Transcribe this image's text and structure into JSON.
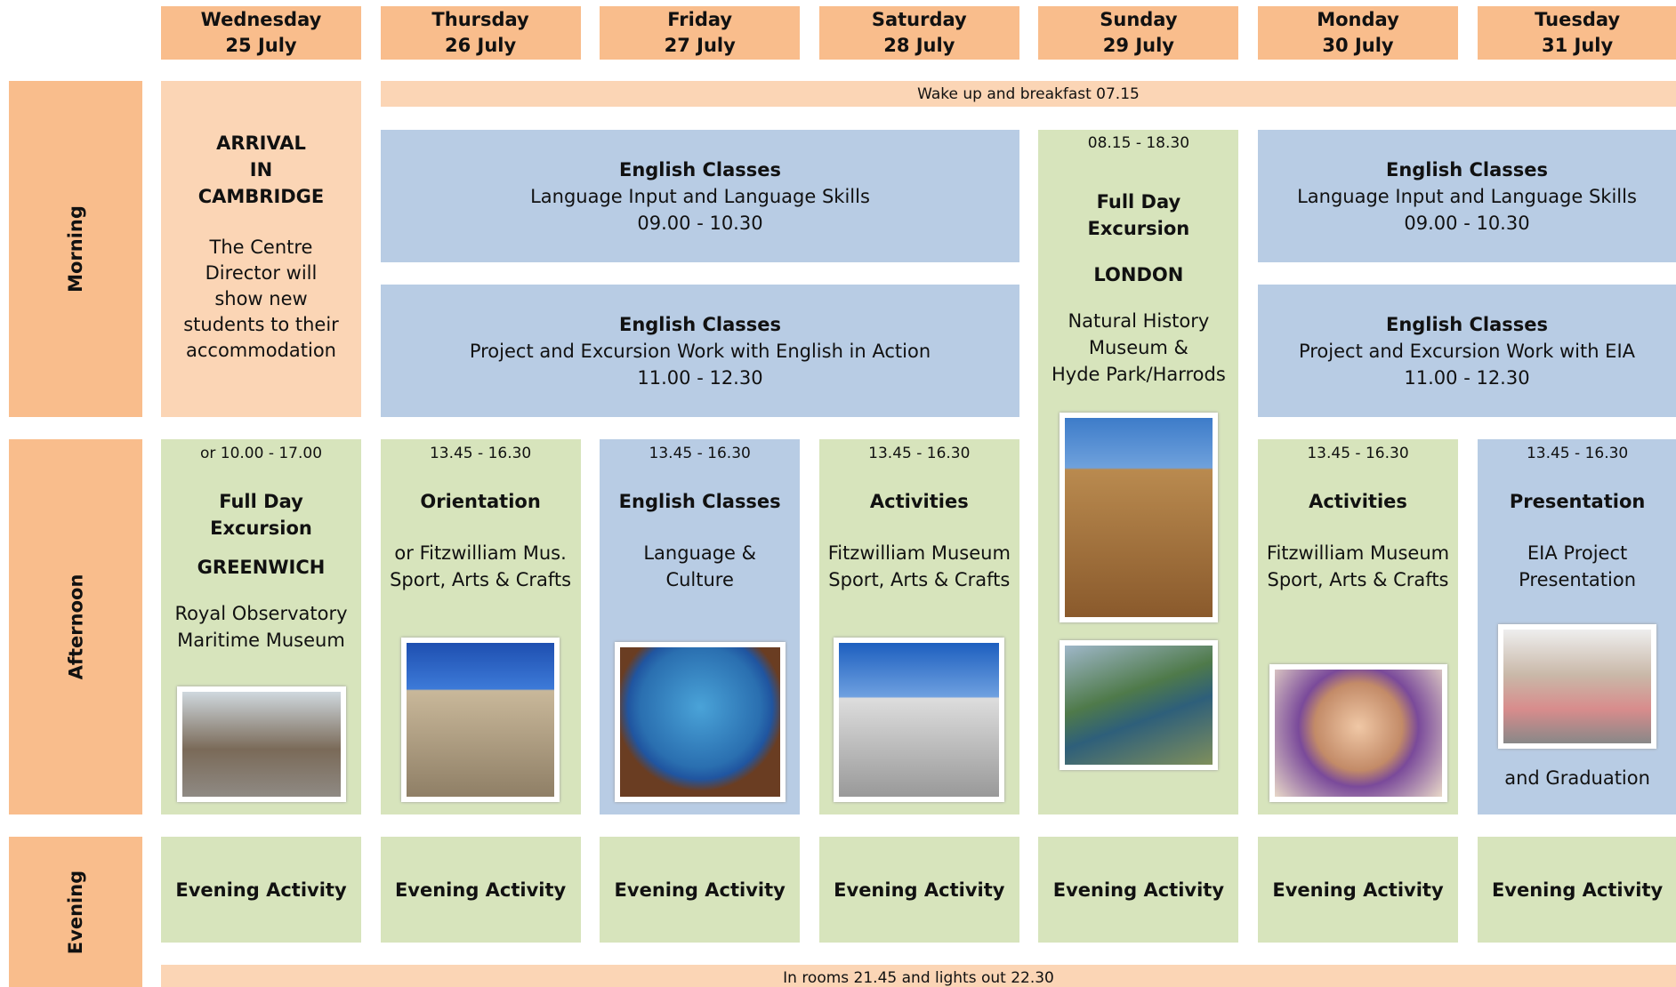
{
  "header": {
    "days": [
      {
        "day": "Wednesday",
        "date": "25 July"
      },
      {
        "day": "Thursday",
        "date": "26 July"
      },
      {
        "day": "Friday",
        "date": "27 July"
      },
      {
        "day": "Saturday",
        "date": "28 July"
      },
      {
        "day": "Sunday",
        "date": "29 July"
      },
      {
        "day": "Monday",
        "date": "30 July"
      },
      {
        "day": "Tuesday",
        "date": "31 July"
      }
    ]
  },
  "rows": [
    "Morning",
    "Afternoon",
    "Evening"
  ],
  "wake": "Wake up and breakfast 07.15",
  "lights": "In rooms 21.45 and lights out 22.30",
  "arrival": {
    "title": [
      "ARRIVAL",
      "IN",
      "CAMBRIDGE"
    ],
    "text": [
      "The Centre",
      "Director will",
      "show new",
      "students to their",
      "accommodation"
    ]
  },
  "morning": [
    {
      "title": "English Classes",
      "subtitle": "Language Input and Language Skills",
      "time": "09.00 - 10.30"
    },
    {
      "title": "English Classes",
      "subtitle": "Project and Excursion Work with English in Action",
      "time": "11.00 - 12.30"
    },
    {
      "title": "English Classes",
      "subtitle": "Language Input and Language Skills",
      "time": "09.00 - 10.30"
    },
    {
      "title": "English Classes",
      "subtitle": "Project and Excursion Work with EIA",
      "time": "11.00 - 12.30"
    }
  ],
  "sunday": {
    "time": "08.15 - 18.30",
    "title": [
      "Full Day",
      "Excursion"
    ],
    "place": "LONDON",
    "text": [
      "Natural History",
      "Museum &",
      "Hyde Park/Harrods"
    ]
  },
  "afternoon": [
    {
      "time": "or 10.00 - 17.00",
      "title": [
        "Full Day",
        "Excursion"
      ],
      "place": "GREENWICH",
      "text": [
        "Royal Observatory",
        "Maritime Museum"
      ]
    },
    {
      "time": "13.45 - 16.30",
      "title": [
        "Orientation"
      ],
      "text": [
        "or Fitzwilliam Mus.",
        "Sport, Arts & Crafts"
      ]
    },
    {
      "time": "13.45 - 16.30",
      "title": [
        "English Classes"
      ],
      "text": [
        "Language &",
        "Culture"
      ]
    },
    {
      "time": "13.45 - 16.30",
      "title": [
        "Activities"
      ],
      "text": [
        "Fitzwilliam Museum",
        "Sport, Arts & Crafts"
      ]
    },
    {
      "time": "13.45 - 16.30",
      "title": [
        "Activities"
      ],
      "text": [
        "Fitzwilliam Museum",
        "Sport, Arts & Crafts"
      ]
    },
    {
      "time": "13.45 - 16.30",
      "title": [
        "Presentation"
      ],
      "text": [
        "EIA Project",
        "Presentation"
      ],
      "extra": "and Graduation"
    }
  ],
  "evening": [
    "Evening Activity",
    "Evening Activity",
    "Evening Activity",
    "Evening Activity",
    "Evening Activity",
    "Evening Activity",
    "Evening Activity"
  ]
}
